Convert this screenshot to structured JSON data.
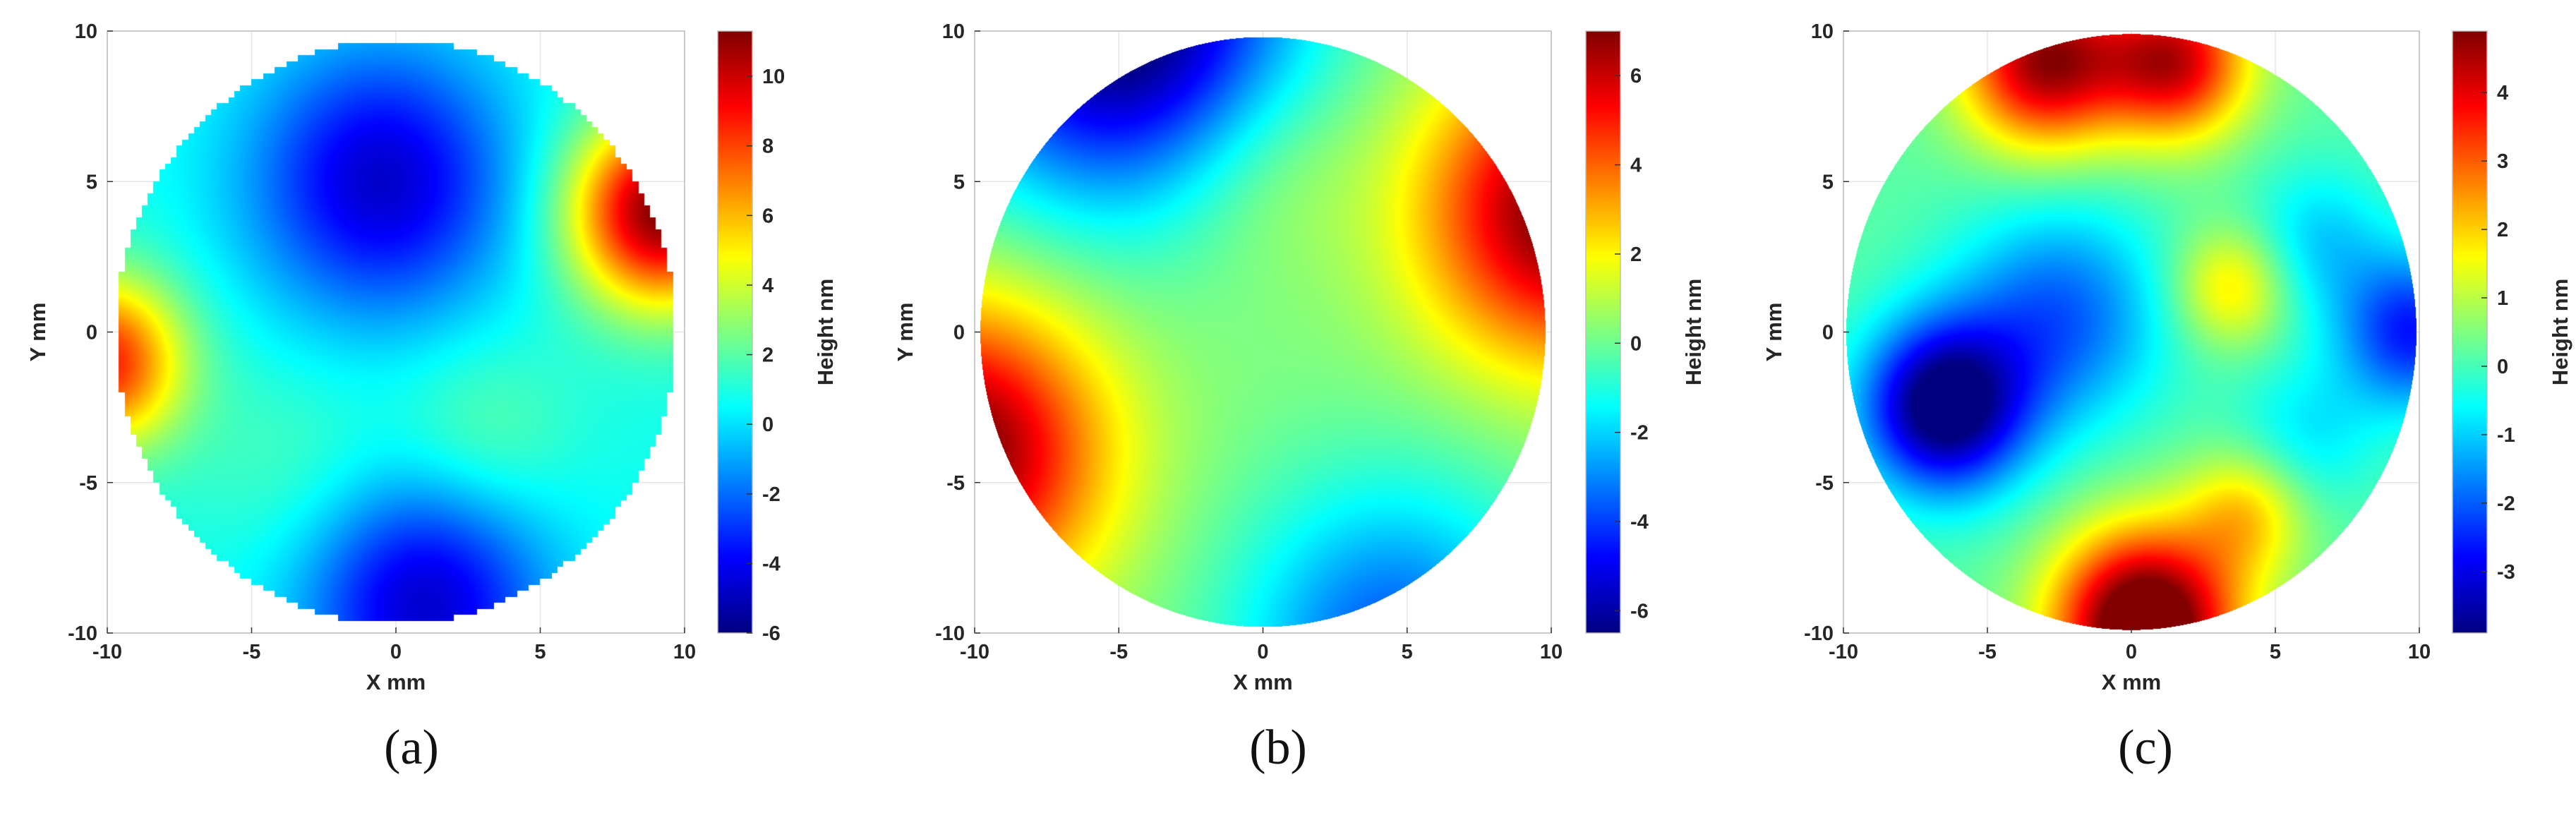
{
  "figure": {
    "panels": [
      {
        "caption": "(a)"
      },
      {
        "caption": "(b)"
      },
      {
        "caption": "(c)"
      }
    ]
  },
  "chart_data": [
    {
      "type": "heatmap",
      "caption": "(a)",
      "xlabel": "X mm",
      "ylabel": "Y mm",
      "colorbar_label": "Height nm",
      "xlim": [
        -10,
        10
      ],
      "ylim": [
        -10,
        10
      ],
      "xticks": [
        -10,
        -5,
        0,
        5,
        10
      ],
      "yticks": [
        -10,
        -5,
        0,
        5,
        10
      ],
      "clim": [
        -6,
        11.3
      ],
      "colorbar_ticks": [
        -6,
        -4,
        -2,
        0,
        2,
        4,
        6,
        8,
        10
      ],
      "colormap": "jet",
      "aperture_radius_mm": 9.7,
      "pixelated_edge": true,
      "grid": true,
      "surface_features": [
        {
          "x": -0.5,
          "y": 5.0,
          "height": -5.5,
          "sigma": 3.2
        },
        {
          "x": 1.0,
          "y": -9.0,
          "height": -5.5,
          "sigma": 3.0
        },
        {
          "x": 9.2,
          "y": 4.0,
          "height": 10.5,
          "sigma": 2.2
        },
        {
          "x": -10.2,
          "y": -1.0,
          "height": 8.0,
          "sigma": 2.0
        },
        {
          "x": 3.0,
          "y": -3.5,
          "height": 1.5,
          "sigma": 2.2
        },
        {
          "x": -3.5,
          "y": -4.5,
          "height": 1.0,
          "sigma": 2.5
        }
      ],
      "surface_base": 0.8
    },
    {
      "type": "heatmap",
      "caption": "(b)",
      "xlabel": "X mm",
      "ylabel": "Y mm",
      "colorbar_label": "Height nm",
      "xlim": [
        -10,
        10
      ],
      "ylim": [
        -10,
        10
      ],
      "xticks": [
        -10,
        -5,
        0,
        5,
        10
      ],
      "yticks": [
        -10,
        -5,
        0,
        5,
        10
      ],
      "clim": [
        -6.5,
        7
      ],
      "colorbar_ticks": [
        -6,
        -4,
        -2,
        0,
        2,
        4,
        6
      ],
      "colormap": "jet",
      "aperture_radius_mm": 9.8,
      "pixelated_edge": false,
      "grid": true,
      "surface_features": [
        {
          "x": -5.0,
          "y": 10.5,
          "height": -7.5,
          "sigma": 4.2
        },
        {
          "x": 4.5,
          "y": -10.5,
          "height": -4.0,
          "sigma": 3.8
        },
        {
          "x": -10.5,
          "y": -4.0,
          "height": 7.0,
          "sigma": 3.4
        },
        {
          "x": 10.5,
          "y": 4.0,
          "height": 7.0,
          "sigma": 3.4
        },
        {
          "x": 0.0,
          "y": 5.5,
          "height": 1.0,
          "sigma": 2.5
        }
      ],
      "surface_base": 0.3
    },
    {
      "type": "heatmap",
      "caption": "(c)",
      "xlabel": "X mm",
      "ylabel": "Y mm",
      "colorbar_label": "Height nm",
      "xlim": [
        -10,
        10
      ],
      "ylim": [
        -10,
        10
      ],
      "xticks": [
        -10,
        -5,
        0,
        5,
        10
      ],
      "yticks": [
        -10,
        -5,
        0,
        5,
        10
      ],
      "clim": [
        -3.9,
        4.9
      ],
      "colorbar_ticks": [
        -3,
        -2,
        -1,
        0,
        1,
        2,
        3,
        4
      ],
      "colormap": "jet",
      "aperture_radius_mm": 9.9,
      "pixelated_edge": false,
      "grid": true,
      "surface_features": [
        {
          "x": -6.5,
          "y": -2.5,
          "height": -4.5,
          "sigma": 2.0
        },
        {
          "x": -2.5,
          "y": 0.5,
          "height": -2.2,
          "sigma": 2.6
        },
        {
          "x": 0.5,
          "y": -9.8,
          "height": 6.0,
          "sigma": 2.2
        },
        {
          "x": -3.0,
          "y": 9.0,
          "height": 4.5,
          "sigma": 2.0
        },
        {
          "x": 1.5,
          "y": 9.0,
          "height": 4.0,
          "sigma": 1.8
        },
        {
          "x": 3.5,
          "y": 1.5,
          "height": 1.8,
          "sigma": 1.4
        },
        {
          "x": 4.0,
          "y": -6.0,
          "height": 1.8,
          "sigma": 1.5
        },
        {
          "x": 9.8,
          "y": 0.0,
          "height": -2.8,
          "sigma": 1.8
        },
        {
          "x": 6.5,
          "y": 3.0,
          "height": -1.2,
          "sigma": 1.8
        },
        {
          "x": 6.0,
          "y": -3.5,
          "height": -1.0,
          "sigma": 1.8
        }
      ],
      "surface_base": 0.2
    }
  ]
}
